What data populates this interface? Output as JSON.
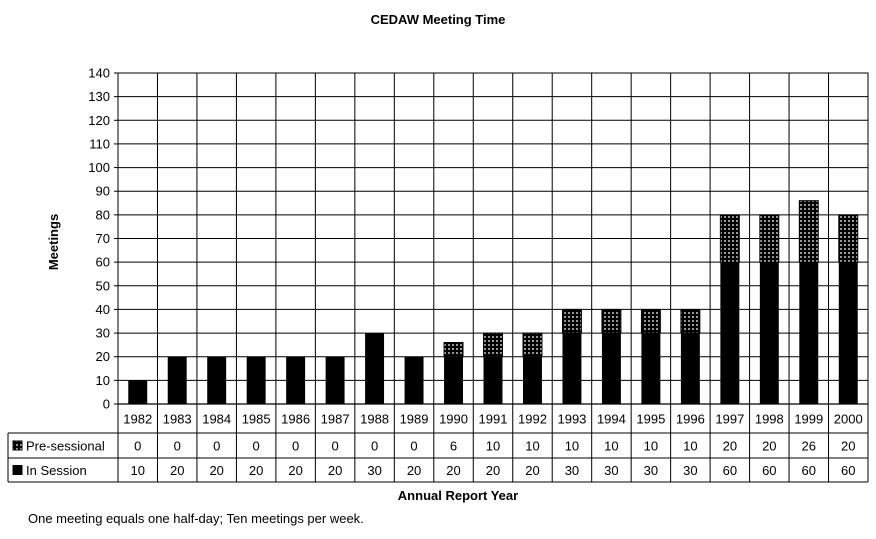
{
  "chart_data": {
    "type": "bar",
    "stacked": true,
    "title": "CEDAW Meeting Time",
    "xlabel": "Annual Report Year",
    "ylabel": "Meetings",
    "ylim": [
      0,
      140
    ],
    "ytick_step": 10,
    "grid": true,
    "categories": [
      "1982",
      "1983",
      "1984",
      "1985",
      "1986",
      "1987",
      "1988",
      "1989",
      "1990",
      "1991",
      "1992",
      "1993",
      "1994",
      "1995",
      "1996",
      "1997",
      "1998",
      "1999",
      "2000"
    ],
    "series": [
      {
        "name": "In Session",
        "color": "#000000",
        "values": [
          10,
          20,
          20,
          20,
          20,
          20,
          30,
          20,
          20,
          20,
          20,
          30,
          30,
          30,
          30,
          60,
          60,
          60,
          60
        ]
      },
      {
        "name": "Pre-sessional",
        "color": "#000000",
        "pattern": "dotted",
        "values": [
          0,
          0,
          0,
          0,
          0,
          0,
          0,
          0,
          6,
          10,
          10,
          10,
          10,
          10,
          10,
          20,
          20,
          26,
          20
        ]
      }
    ],
    "table_rows": [
      "Pre-sessional",
      "In Session"
    ],
    "footnote": "One meeting equals one half-day; Ten meetings per week."
  }
}
